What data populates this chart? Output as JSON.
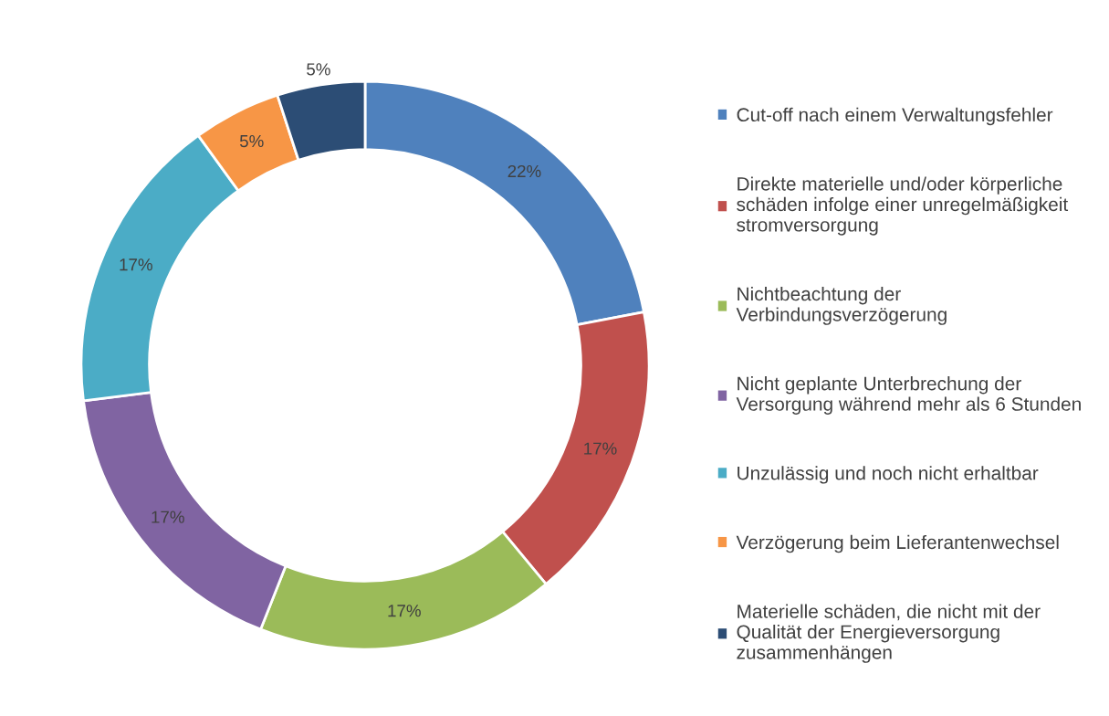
{
  "chart_data": {
    "type": "donut",
    "categories": [
      "Cut-off nach einem Verwaltungsfehler",
      "Direkte materielle und/oder körperliche schäden infolge einer unregelmäßigkeit stromversorgung",
      "Nichtbeachtung der Verbindungsverzögerung",
      "Nicht geplante Unterbrechung der Versorgung während mehr als 6 Stunden",
      "Unzulässig und noch nicht erhaltbar",
      "Verzögerung beim Lieferantenwechsel",
      "Materielle schäden, die nicht mit der Qualität der Energieversorgung zusammenhängen"
    ],
    "values": [
      22,
      17,
      17,
      17,
      17,
      5,
      5
    ],
    "colors": [
      "#4f81bd",
      "#c0504d",
      "#9bbb59",
      "#8064a2",
      "#4bacc6",
      "#f79646",
      "#2c4d75"
    ],
    "value_labels": [
      "22%",
      "17%",
      "17%",
      "17%",
      "17%",
      "5%",
      "5%"
    ],
    "legend": "right"
  }
}
